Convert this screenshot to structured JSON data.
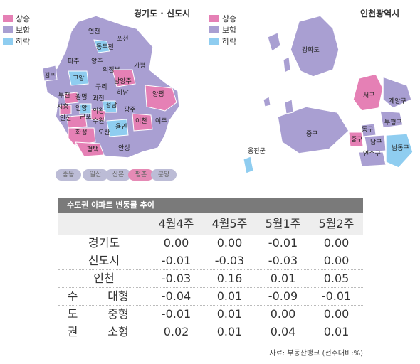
{
  "gyeonggi_map": {
    "title": "경기도 · 신도시",
    "legend": [
      {
        "label": "상승",
        "color": "#e580b5"
      },
      {
        "label": "보합",
        "color": "#a99fd2"
      },
      {
        "label": "하락",
        "color": "#8fcdf0"
      }
    ],
    "regions": [
      "연천",
      "포천",
      "동두천",
      "파주",
      "양주",
      "의정부",
      "가평",
      "김포",
      "고양",
      "남양주",
      "구리",
      "하남",
      "양평",
      "부천",
      "광명",
      "과천",
      "시흥",
      "안양",
      "의왕",
      "성남",
      "광주",
      "안산",
      "군포",
      "수원",
      "용인",
      "이천",
      "여주",
      "화성",
      "오산",
      "평택",
      "안성"
    ],
    "new_towns": [
      {
        "label": "중동",
        "status": "보합"
      },
      {
        "label": "일산",
        "status": "보합"
      },
      {
        "label": "산본",
        "status": "보합"
      },
      {
        "label": "평촌",
        "status": "상승"
      },
      {
        "label": "분당",
        "status": "보합"
      }
    ]
  },
  "incheon_map": {
    "title": "인천광역시",
    "legend": [
      {
        "label": "상승",
        "color": "#e580b5"
      },
      {
        "label": "보합",
        "color": "#a99fd2"
      },
      {
        "label": "하락",
        "color": "#8fcdf0"
      }
    ],
    "regions": [
      "강화도",
      "서구",
      "계양구",
      "중구",
      "동구",
      "부평구",
      "중구",
      "남구",
      "연수구",
      "남동구",
      "옹진군"
    ]
  },
  "table": {
    "title": "수도권 아파트 변동률 추이",
    "headers": [
      "",
      "4월4주",
      "4월5주",
      "5월1주",
      "5월2주"
    ],
    "rows": [
      {
        "label": "경기도",
        "values": [
          "0.00",
          "0.00",
          "-0.01",
          "0.00"
        ]
      },
      {
        "label": "신도시",
        "values": [
          "-0.01",
          "-0.03",
          "-0.03",
          "0.00"
        ]
      },
      {
        "label": "인천",
        "values": [
          "-0.03",
          "0.16",
          "0.01",
          "0.05"
        ]
      }
    ],
    "group_label": [
      "수",
      "도",
      "권"
    ],
    "group_rows": [
      {
        "label": "대형",
        "values": [
          "-0.04",
          "0.01",
          "-0.09",
          "-0.01"
        ]
      },
      {
        "label": "중형",
        "values": [
          "-0.01",
          "0.01",
          "0.00",
          "0.00"
        ]
      },
      {
        "label": "소형",
        "values": [
          "0.02",
          "0.01",
          "0.04",
          "0.01"
        ]
      }
    ],
    "source": "자료: 부동산뱅크 (전주대비:%)"
  }
}
